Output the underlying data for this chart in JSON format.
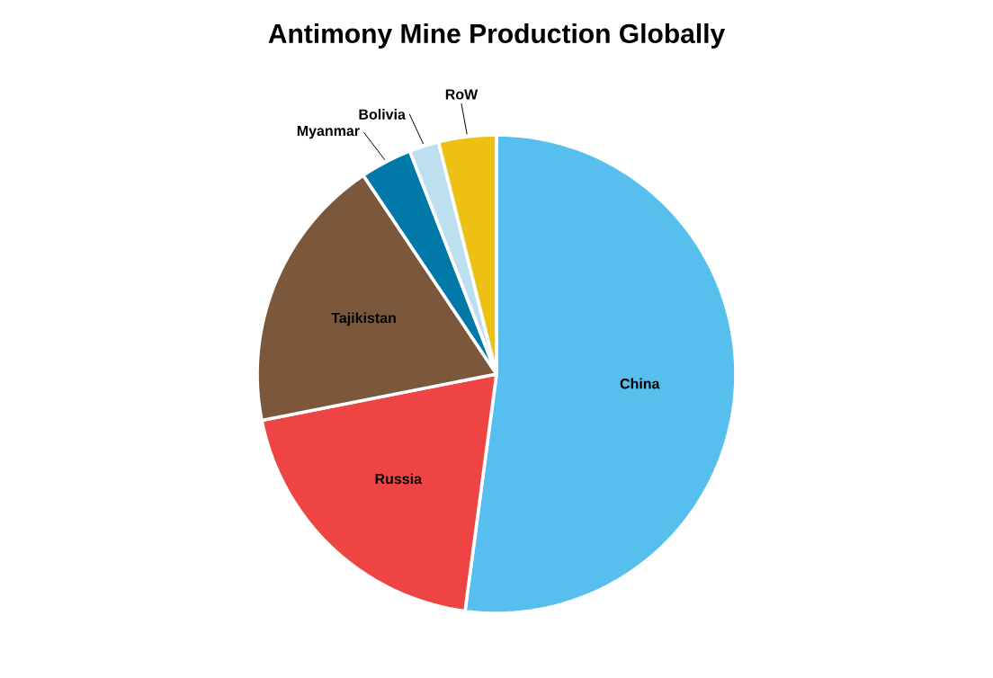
{
  "chart_data": {
    "type": "pie",
    "title": "Antimony Mine Production Globally",
    "categories": [
      "China",
      "Russia",
      "Tajikistan",
      "Myanmar",
      "Bolivia",
      "RoW"
    ],
    "values": [
      52.1,
      19.8,
      18.7,
      3.5,
      2.0,
      3.9
    ],
    "colors": [
      "#56bfee",
      "#ee4444",
      "#7b583b",
      "#0079a8",
      "#bde0f0",
      "#ecc114"
    ]
  }
}
